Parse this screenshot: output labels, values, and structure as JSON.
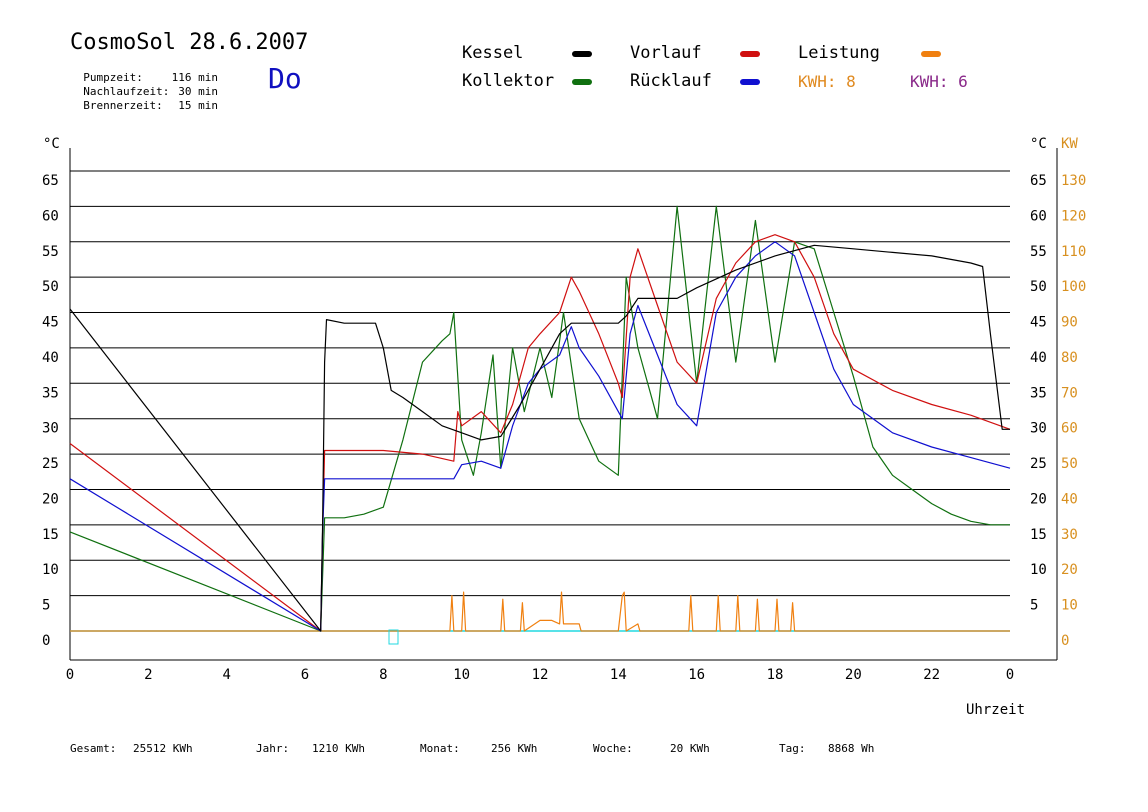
{
  "header": {
    "title": "CosmoSol 28.6.2007",
    "day": "Do",
    "info": [
      {
        "label": "Pumpzeit:",
        "value": "116 min"
      },
      {
        "label": "Nachlaufzeit:",
        "value": "30 min"
      },
      {
        "label": "Brennerzeit:",
        "value": "15 min"
      }
    ]
  },
  "legend": {
    "kessel": "Kessel",
    "kollektor": "Kollektor",
    "vorlauf": "Vorlauf",
    "ruecklauf": "Rücklauf",
    "leistung": "Leistung",
    "kwh_1": "KWH: 8",
    "kwh_2": "KWH: 6"
  },
  "colors": {
    "kessel": "#000000",
    "kollektor": "#107010",
    "vorlauf": "#d01010",
    "ruecklauf": "#1010d0",
    "leistung": "#f08010",
    "kwh_2": "#8a2a8a",
    "baseline": "#20d8e0"
  },
  "footer": {
    "gesamt_label": "Gesamt:",
    "gesamt_value": "25512 KWh",
    "jahr_label": "Jahr:",
    "jahr_value": "1210 KWh",
    "monat_label": "Monat:",
    "monat_value": "256 KWh",
    "woche_label": "Woche:",
    "woche_value": "20 KWh",
    "tag_label": "Tag:",
    "tag_value": "8868 Wh"
  },
  "chart_data": {
    "type": "line",
    "xlabel": "Uhrzeit",
    "ylabel_left": "°C",
    "ylabel_right": "°C",
    "ylabel_right2": "KW",
    "x_ticks": [
      "0",
      "2",
      "4",
      "6",
      "8",
      "10",
      "12",
      "14",
      "16",
      "18",
      "20",
      "22",
      "0"
    ],
    "xlim": [
      0,
      24
    ],
    "ylim": [
      0,
      65
    ],
    "y_ticks_left": [
      "0",
      "5",
      "10",
      "15",
      "20",
      "25",
      "30",
      "35",
      "40",
      "45",
      "50",
      "55",
      "60",
      "65"
    ],
    "y_ticks_right_c": [
      "5",
      "10",
      "15",
      "20",
      "25",
      "30",
      "35",
      "40",
      "45",
      "50",
      "55",
      "60",
      "65"
    ],
    "y_ticks_right_kw": [
      "0",
      "10",
      "20",
      "30",
      "40",
      "50",
      "60",
      "70",
      "80",
      "90",
      "100",
      "110",
      "120",
      "130"
    ],
    "grid": true,
    "series": [
      {
        "name": "Kessel",
        "key": "kessel",
        "x": [
          0,
          6.4,
          6.45,
          6.5,
          6.55,
          7.0,
          7.8,
          8.0,
          8.2,
          8.5,
          9.0,
          9.5,
          10.0,
          10.5,
          11.0,
          11.5,
          12.0,
          12.5,
          12.8,
          13.0,
          13.5,
          14.0,
          14.2,
          14.5,
          15.0,
          15.5,
          16.0,
          17.0,
          18.0,
          19.0,
          20.0,
          21.0,
          22.0,
          23.0,
          23.3,
          23.5,
          23.8,
          24
        ],
        "y": [
          45.5,
          0,
          15,
          38,
          44,
          43.5,
          43.5,
          40,
          34,
          33,
          31,
          29,
          28,
          27,
          27.5,
          32,
          37,
          42,
          43.5,
          43.5,
          43.5,
          43.5,
          44.5,
          47,
          47,
          47,
          48.5,
          51,
          53,
          54.5,
          54,
          53.5,
          53,
          52,
          51.5,
          42,
          28.5,
          28.5
        ]
      },
      {
        "name": "Kollektor",
        "key": "kollektor",
        "x": [
          0,
          6.4,
          6.5,
          7.0,
          7.5,
          8.0,
          8.5,
          9.0,
          9.5,
          9.7,
          9.8,
          10.0,
          10.3,
          10.5,
          10.8,
          11.0,
          11.3,
          11.6,
          12.0,
          12.3,
          12.6,
          13.0,
          13.5,
          14.0,
          14.2,
          14.5,
          15.0,
          15.5,
          16.0,
          16.5,
          17.0,
          17.5,
          18.0,
          18.5,
          19.0,
          19.5,
          20.0,
          20.5,
          21.0,
          21.5,
          22.0,
          22.5,
          23.0,
          23.5,
          24
        ],
        "y": [
          14,
          0,
          16,
          16,
          16.5,
          17.5,
          27,
          38,
          41,
          42,
          45,
          27,
          22,
          28,
          39,
          23,
          40,
          31,
          40,
          33,
          45,
          30,
          24,
          22,
          50,
          40,
          30,
          60,
          35,
          60,
          38,
          58,
          38,
          55,
          54,
          45,
          36,
          26,
          22,
          20,
          18,
          16.5,
          15.5,
          15,
          15
        ]
      },
      {
        "name": "Vorlauf",
        "key": "vorlauf",
        "x": [
          0,
          6.4,
          6.45,
          6.5,
          7.0,
          8.0,
          9.0,
          9.8,
          9.9,
          10.0,
          10.5,
          11.0,
          11.3,
          11.7,
          12.0,
          12.5,
          12.8,
          13.0,
          13.5,
          14.0,
          14.1,
          14.3,
          14.5,
          15.0,
          15.5,
          16.0,
          16.5,
          17.0,
          17.5,
          18.0,
          18.5,
          19.0,
          19.5,
          20.0,
          21.0,
          22.0,
          23.0,
          24
        ],
        "y": [
          26.5,
          0,
          14,
          25.5,
          25.5,
          25.5,
          25,
          24,
          31,
          29,
          31,
          28,
          32,
          40,
          42,
          45,
          50,
          48,
          42,
          35,
          33,
          50,
          54,
          46,
          38,
          35,
          47,
          52,
          55,
          56,
          55,
          50,
          42,
          37,
          34,
          32,
          30.5,
          28.5
        ]
      },
      {
        "name": "Rücklauf",
        "key": "ruecklauf",
        "x": [
          0,
          6.4,
          6.45,
          6.5,
          7.0,
          8.0,
          9.0,
          9.8,
          10.0,
          10.5,
          11.0,
          11.3,
          11.7,
          12.0,
          12.5,
          12.8,
          13.0,
          13.5,
          14.0,
          14.1,
          14.3,
          14.5,
          15.0,
          15.5,
          16.0,
          16.5,
          17.0,
          17.5,
          18.0,
          18.5,
          19.0,
          19.5,
          20.0,
          21.0,
          22.0,
          23.0,
          24
        ],
        "y": [
          21.5,
          0,
          14,
          21.5,
          21.5,
          21.5,
          21.5,
          21.5,
          23.5,
          24,
          23,
          29,
          35,
          37,
          39,
          43,
          40,
          36,
          31,
          30,
          42,
          46,
          39,
          32,
          29,
          45,
          50,
          53,
          55,
          53,
          45,
          37,
          32,
          28,
          26,
          24.5,
          23
        ]
      },
      {
        "name": "Leistung",
        "key": "leistung",
        "x": [
          0,
          9.7,
          9.75,
          9.8,
          10.0,
          10.05,
          10.1,
          11.0,
          11.05,
          11.1,
          11.5,
          11.55,
          11.6,
          12.0,
          12.3,
          12.5,
          12.55,
          12.6,
          13.0,
          13.05,
          14.0,
          14.1,
          14.15,
          14.2,
          14.5,
          14.55,
          15.8,
          15.85,
          15.9,
          16.0,
          16.5,
          16.55,
          16.6,
          17.0,
          17.05,
          17.1,
          17.5,
          17.55,
          17.6,
          18.0,
          18.05,
          18.1,
          18.4,
          18.45,
          18.5,
          24
        ],
        "y": [
          0,
          0,
          5,
          0,
          0,
          5.5,
          0,
          0,
          4.5,
          0,
          0,
          4,
          0,
          1.5,
          1.5,
          1,
          5.5,
          1,
          1,
          0,
          0,
          5,
          5.5,
          0,
          1,
          0,
          0,
          5,
          0,
          0,
          0,
          5,
          0,
          0,
          5,
          0,
          0,
          4.5,
          0,
          0,
          4.5,
          0,
          0,
          4,
          0,
          0
        ]
      }
    ]
  }
}
